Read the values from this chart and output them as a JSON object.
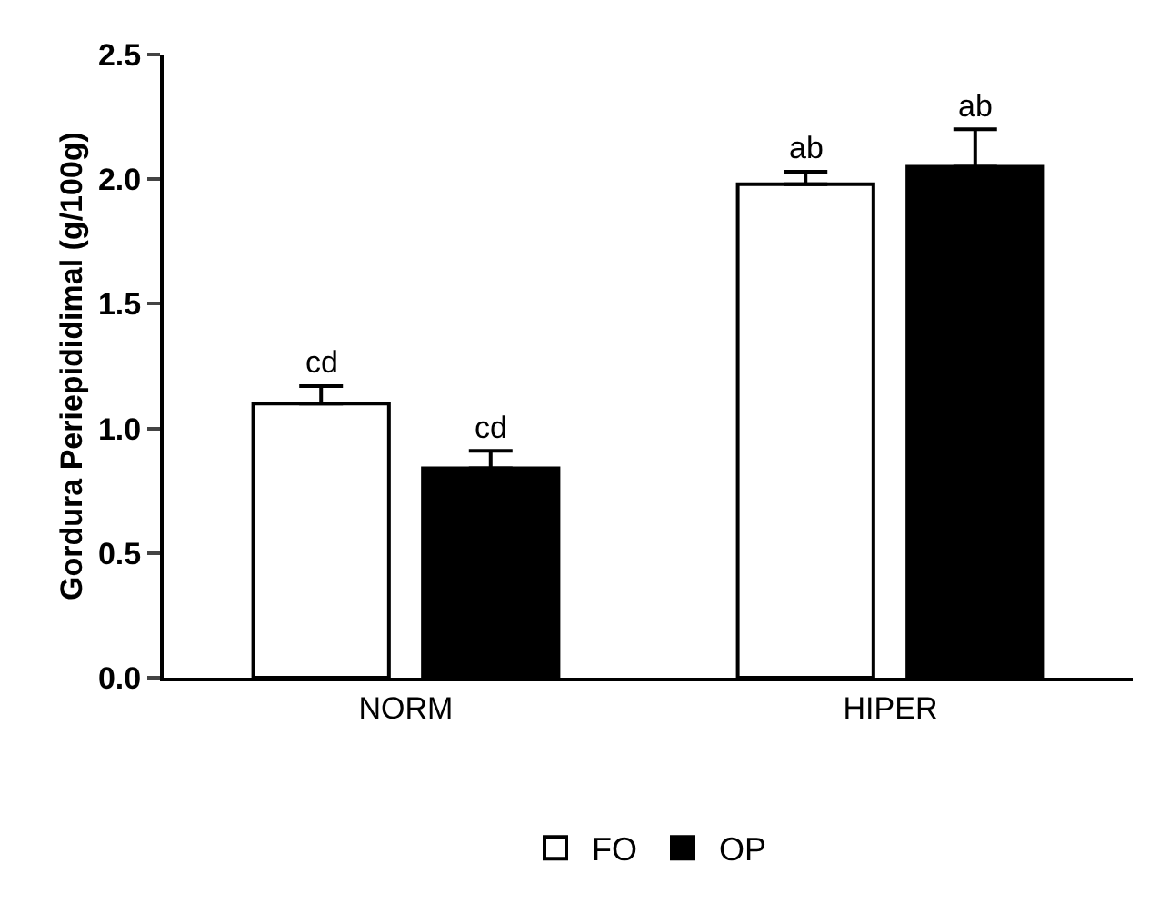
{
  "chart_data": {
    "type": "bar",
    "ylabel": "Gordura Periepididimal (g/100g)",
    "categories": [
      "NORM",
      "HIPER"
    ],
    "series": [
      {
        "name": "FO",
        "color": "#ffffff",
        "values": [
          1.1,
          1.98
        ],
        "errors": [
          [
            1.1,
            1.17
          ],
          [
            1.98,
            2.03
          ]
        ]
      },
      {
        "name": "OP",
        "color": "#000000",
        "values": [
          0.84,
          2.05
        ],
        "errors": [
          [
            0.84,
            0.91
          ],
          [
            2.05,
            2.2
          ]
        ]
      }
    ],
    "annotations": [
      "cd",
      "cd",
      "ab",
      "ab"
    ],
    "ylim": [
      0,
      2.5
    ],
    "yticks": [
      {
        "value": 0,
        "label": "0.0"
      },
      {
        "value": 0.5,
        "label": "0.5"
      },
      {
        "value": 1,
        "label": "1.0"
      },
      {
        "value": 1.5,
        "label": "1.5"
      },
      {
        "value": 2,
        "label": "2.0"
      },
      {
        "value": 2.5,
        "label": "2.5"
      }
    ],
    "grid": false,
    "legend": "bottom"
  }
}
